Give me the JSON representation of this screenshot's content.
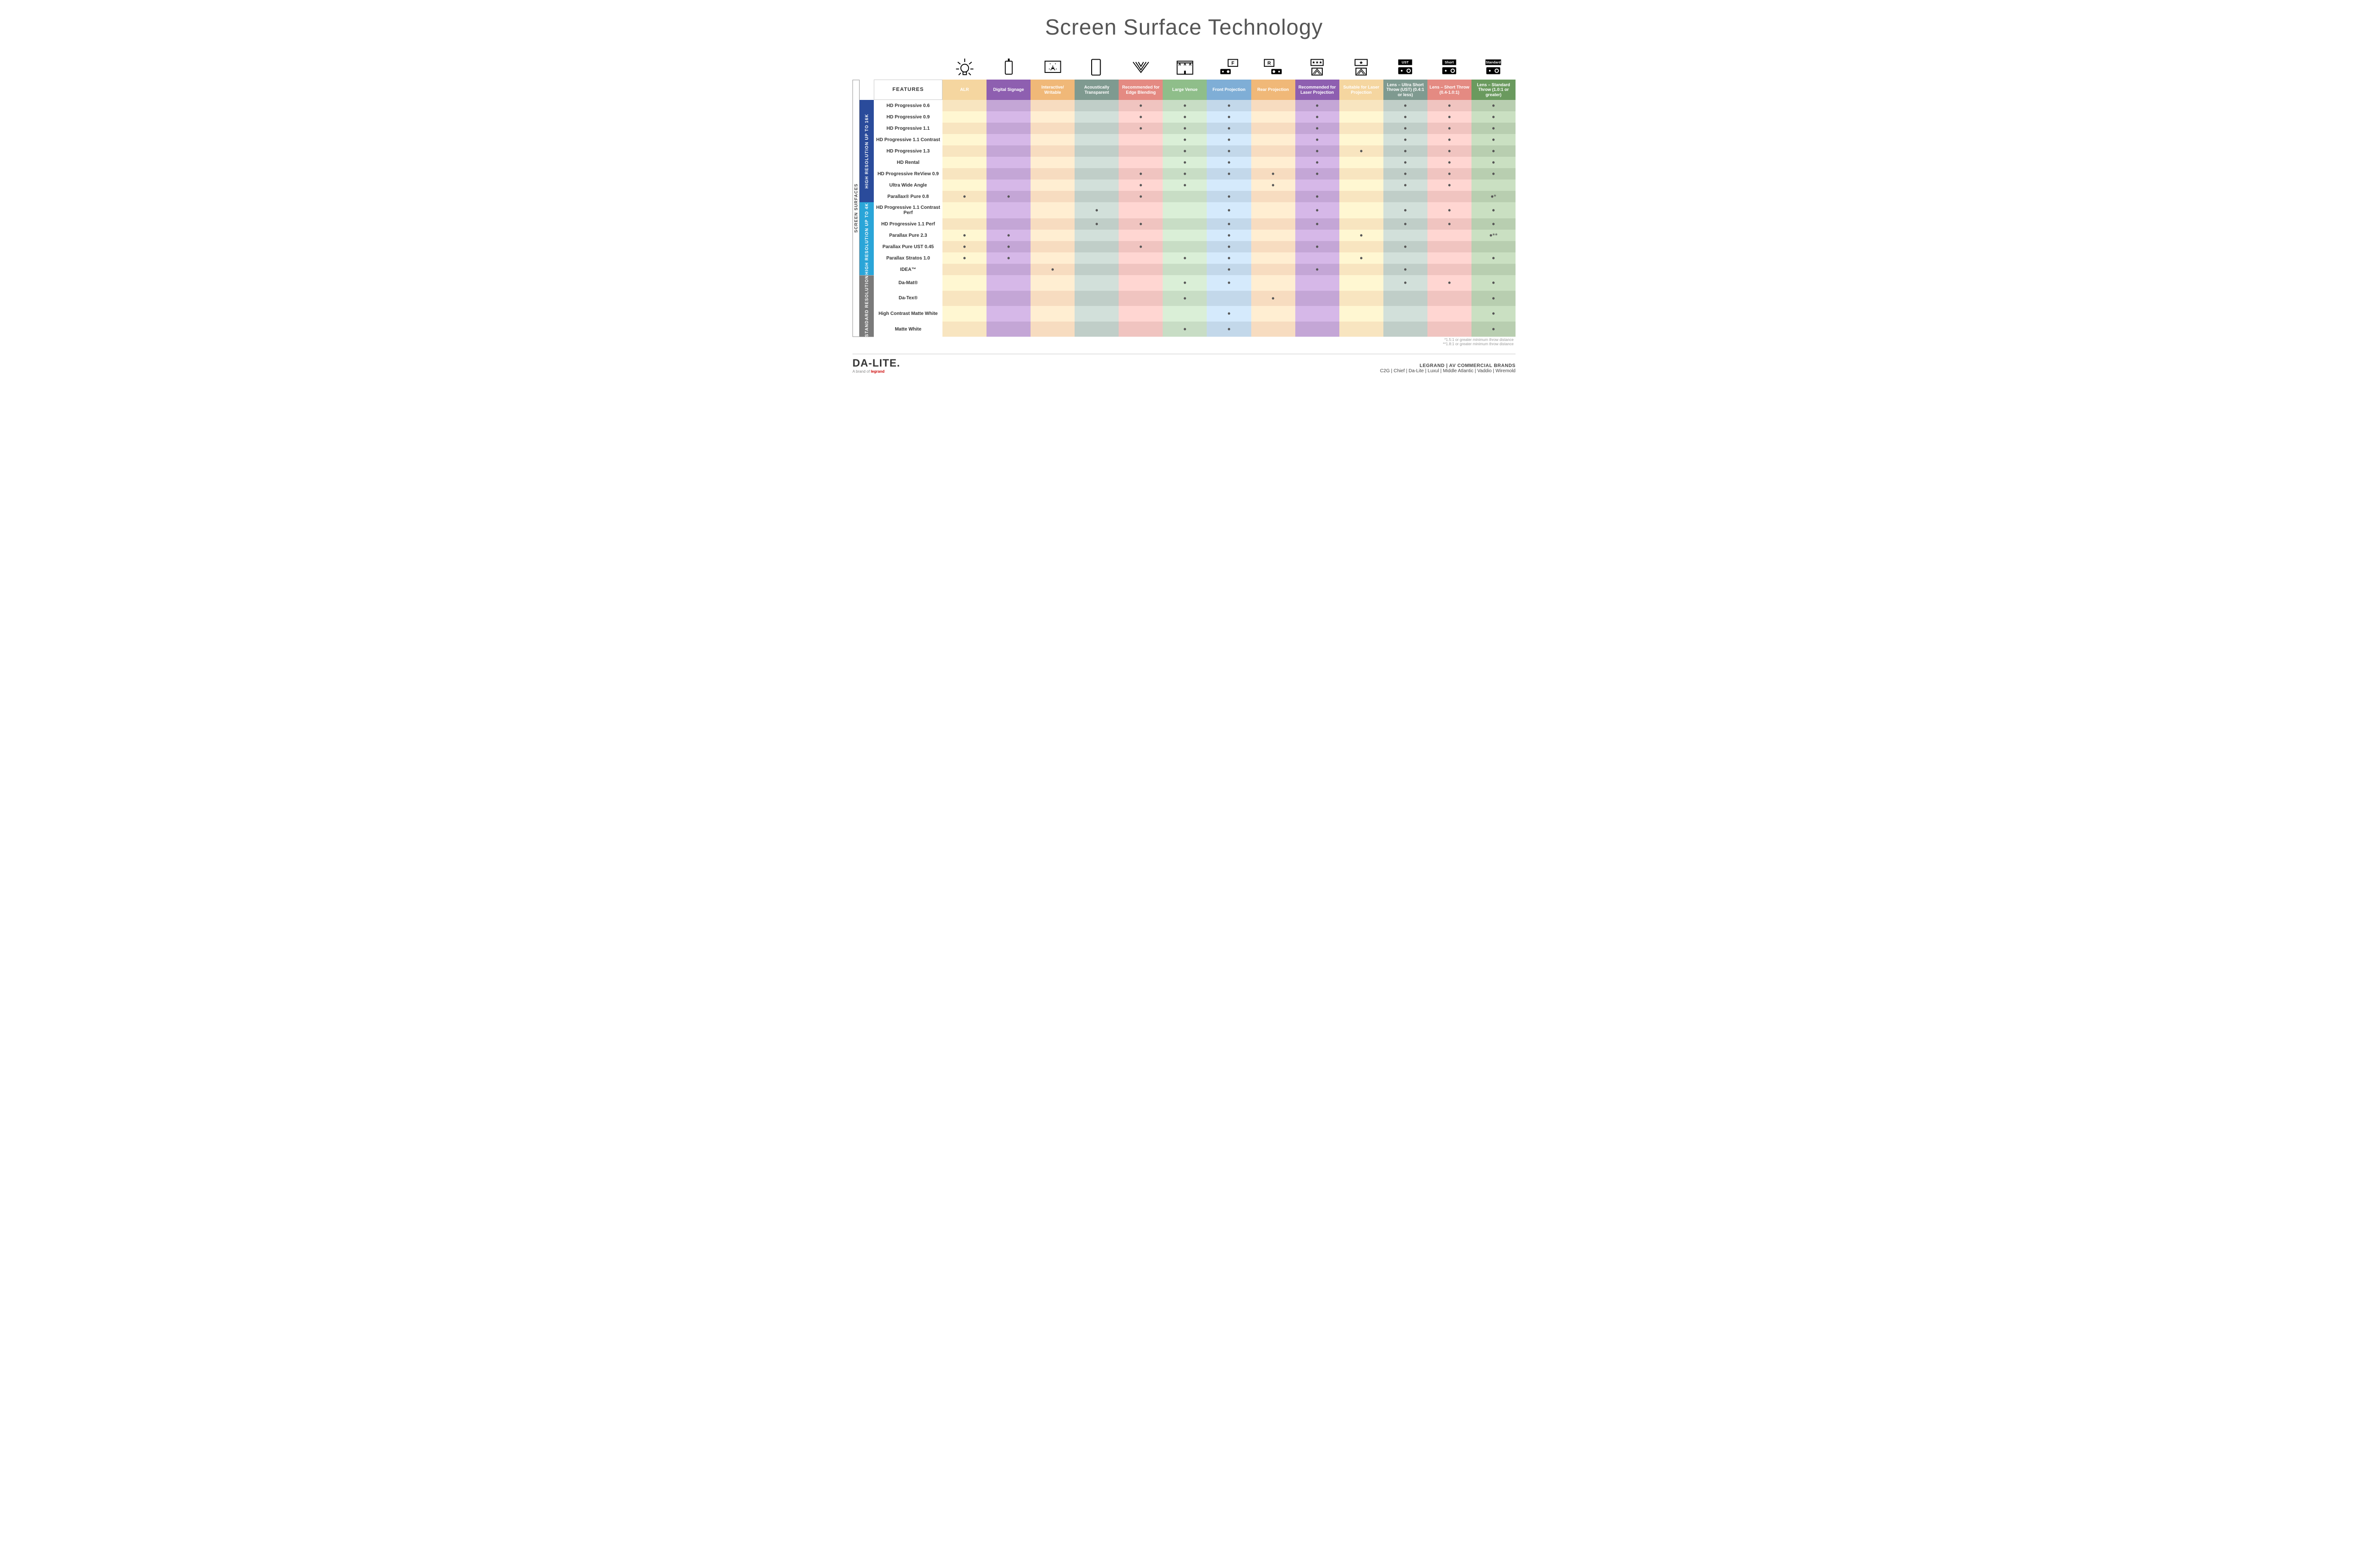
{
  "title": "Screen Surface Technology",
  "sideOuter": "SCREEN SURFACES",
  "groups": [
    {
      "key": "g16k",
      "label": "HIGH RESOLUTION UP TO 16K",
      "class": "side-16k",
      "rows": 9
    },
    {
      "key": "g4k",
      "label": "HIGH RESOLUTION UP TO 4K",
      "class": "side-4k",
      "rows": 6
    },
    {
      "key": "gstd",
      "label": "STANDARD RESOLUTION",
      "class": "side-std",
      "rows": 4
    }
  ],
  "featuresHdr": "FEATURES",
  "columns": [
    {
      "key": "alr",
      "label": "ALR",
      "c1": "#f5d6a0",
      "c2": "#f8e5c0"
    },
    {
      "key": "sig",
      "label": "Digital Signage",
      "c1": "#8e5fb0",
      "c2": "#c4a6d6"
    },
    {
      "key": "int",
      "label": "Interactive/\nWritable",
      "c1": "#f0b878",
      "c2": "#f7dcc0"
    },
    {
      "key": "aco",
      "label": "Acoustically Transparent",
      "c1": "#7f9a90",
      "c2": "#c0cec8"
    },
    {
      "key": "edge",
      "label": "Recommended for Edge Blending",
      "c1": "#e48a82",
      "c2": "#f0c4c0"
    },
    {
      "key": "lv",
      "label": "Large Venue",
      "c1": "#8fbe8a",
      "c2": "#c8ddc5"
    },
    {
      "key": "fp",
      "label": "Front Projection",
      "c1": "#7faed6",
      "c2": "#c3d8ea"
    },
    {
      "key": "rp",
      "label": "Rear Projection",
      "c1": "#f0b878",
      "c2": "#f7dcc0"
    },
    {
      "key": "rlp",
      "label": "Recommended for Laser Projection",
      "c1": "#8e5fb0",
      "c2": "#c4a6d6"
    },
    {
      "key": "slp",
      "label": "Suitable for Laser Projection",
      "c1": "#f5d6a0",
      "c2": "#f8e5c0"
    },
    {
      "key": "ust",
      "label": "Lens – Ultra Short Throw (UST) (0.4:1 or less)",
      "c1": "#7f9a90",
      "c2": "#c0cec8"
    },
    {
      "key": "sht",
      "label": "Lens – Short Throw (0.4-1.0:1)",
      "c1": "#e48a82",
      "c2": "#f0c4c0"
    },
    {
      "key": "std",
      "label": "Lens – Standard Throw (1.0:1 or greater)",
      "c1": "#6a9a5e",
      "c2": "#b8ceb0"
    }
  ],
  "rows": [
    {
      "g": "g16k",
      "name": "HD Progressive 0.6",
      "d": {
        "edge": "•",
        "lv": "•",
        "fp": "•",
        "rlp": "•",
        "ust": "•",
        "sht": "•",
        "std": "•"
      }
    },
    {
      "g": "g16k",
      "name": "HD Progressive 0.9",
      "d": {
        "edge": "•",
        "lv": "•",
        "fp": "•",
        "rlp": "•",
        "ust": "•",
        "sht": "•",
        "std": "•"
      }
    },
    {
      "g": "g16k",
      "name": "HD Progressive 1.1",
      "d": {
        "edge": "•",
        "lv": "•",
        "fp": "•",
        "rlp": "•",
        "ust": "•",
        "sht": "•",
        "std": "•"
      }
    },
    {
      "g": "g16k",
      "name": "HD Progressive 1.1 Contrast",
      "d": {
        "lv": "•",
        "fp": "•",
        "rlp": "•",
        "ust": "•",
        "sht": "•",
        "std": "•"
      }
    },
    {
      "g": "g16k",
      "name": "HD Progressive 1.3",
      "d": {
        "lv": "•",
        "fp": "•",
        "rlp": "•",
        "slp": "•",
        "ust": "•",
        "sht": "•",
        "std": "•"
      }
    },
    {
      "g": "g16k",
      "name": "HD Rental",
      "d": {
        "lv": "•",
        "fp": "•",
        "rlp": "•",
        "ust": "•",
        "sht": "•",
        "std": "•"
      }
    },
    {
      "g": "g16k",
      "name": "HD Progressive ReView 0.9",
      "d": {
        "edge": "•",
        "lv": "•",
        "fp": "•",
        "rp": "•",
        "rlp": "•",
        "ust": "•",
        "sht": "•",
        "std": "•"
      }
    },
    {
      "g": "g16k",
      "name": "Ultra Wide Angle",
      "d": {
        "edge": "•",
        "lv": "•",
        "rp": "•",
        "ust": "•",
        "sht": "•"
      }
    },
    {
      "g": "g16k",
      "name": "Parallax® Pure 0.8",
      "d": {
        "alr": "•",
        "sig": "•",
        "edge": "•",
        "fp": "•",
        "rlp": "•",
        "std": "•*"
      }
    },
    {
      "g": "g4k",
      "name": "HD Progressive 1.1 Contrast Perf",
      "d": {
        "aco": "•",
        "fp": "•",
        "rlp": "•",
        "ust": "•",
        "sht": "•",
        "std": "•"
      }
    },
    {
      "g": "g4k",
      "name": "HD Progressive 1.1 Perf",
      "d": {
        "aco": "•",
        "edge": "•",
        "fp": "•",
        "rlp": "•",
        "ust": "•",
        "sht": "•",
        "std": "•"
      }
    },
    {
      "g": "g4k",
      "name": "Parallax Pure 2.3",
      "d": {
        "alr": "•",
        "sig": "•",
        "fp": "•",
        "slp": "•",
        "std": "•**"
      }
    },
    {
      "g": "g4k",
      "name": "Parallax Pure UST 0.45",
      "d": {
        "alr": "•",
        "sig": "•",
        "edge": "•",
        "fp": "•",
        "rlp": "•",
        "ust": "•"
      }
    },
    {
      "g": "g4k",
      "name": "Parallax Stratos 1.0",
      "d": {
        "alr": "•",
        "sig": "•",
        "lv": "•",
        "fp": "•",
        "slp": "•",
        "std": "•"
      }
    },
    {
      "g": "g4k",
      "name": "IDEA™",
      "d": {
        "int": "•",
        "fp": "•",
        "rlp": "•",
        "ust": "•"
      }
    },
    {
      "g": "gstd",
      "name": "Da-Mat®",
      "d": {
        "lv": "•",
        "fp": "•",
        "ust": "•",
        "sht": "•",
        "std": "•"
      }
    },
    {
      "g": "gstd",
      "name": "Da-Tex®",
      "d": {
        "lv": "•",
        "rp": "•",
        "std": "•"
      }
    },
    {
      "g": "gstd",
      "name": "High Contrast Matte White",
      "d": {
        "fp": "•",
        "std": "•"
      }
    },
    {
      "g": "gstd",
      "name": "Matte White",
      "d": {
        "lv": "•",
        "fp": "•",
        "std": "•"
      }
    }
  ],
  "footnotes": [
    "*1.5:1 or greater minimum throw distance",
    "**1.8:1 or greater minimum throw distance"
  ],
  "logo": "DA-LITE.",
  "logoSub": "A brand of ",
  "logoBrand": "legrand",
  "brandsTop": "LEGRAND | AV COMMERCIAL BRANDS",
  "brandsList": "C2G  |  Chief  |  Da-Lite  |  Luxul  |  Middle Atlantic  |  Vaddio  |  Wiremold",
  "icons": [
    "bulb",
    "tablet",
    "touch",
    "speaker",
    "angles",
    "venue",
    "projF",
    "projR",
    "laser3",
    "laser1",
    "projUST",
    "projShort",
    "projStd"
  ]
}
